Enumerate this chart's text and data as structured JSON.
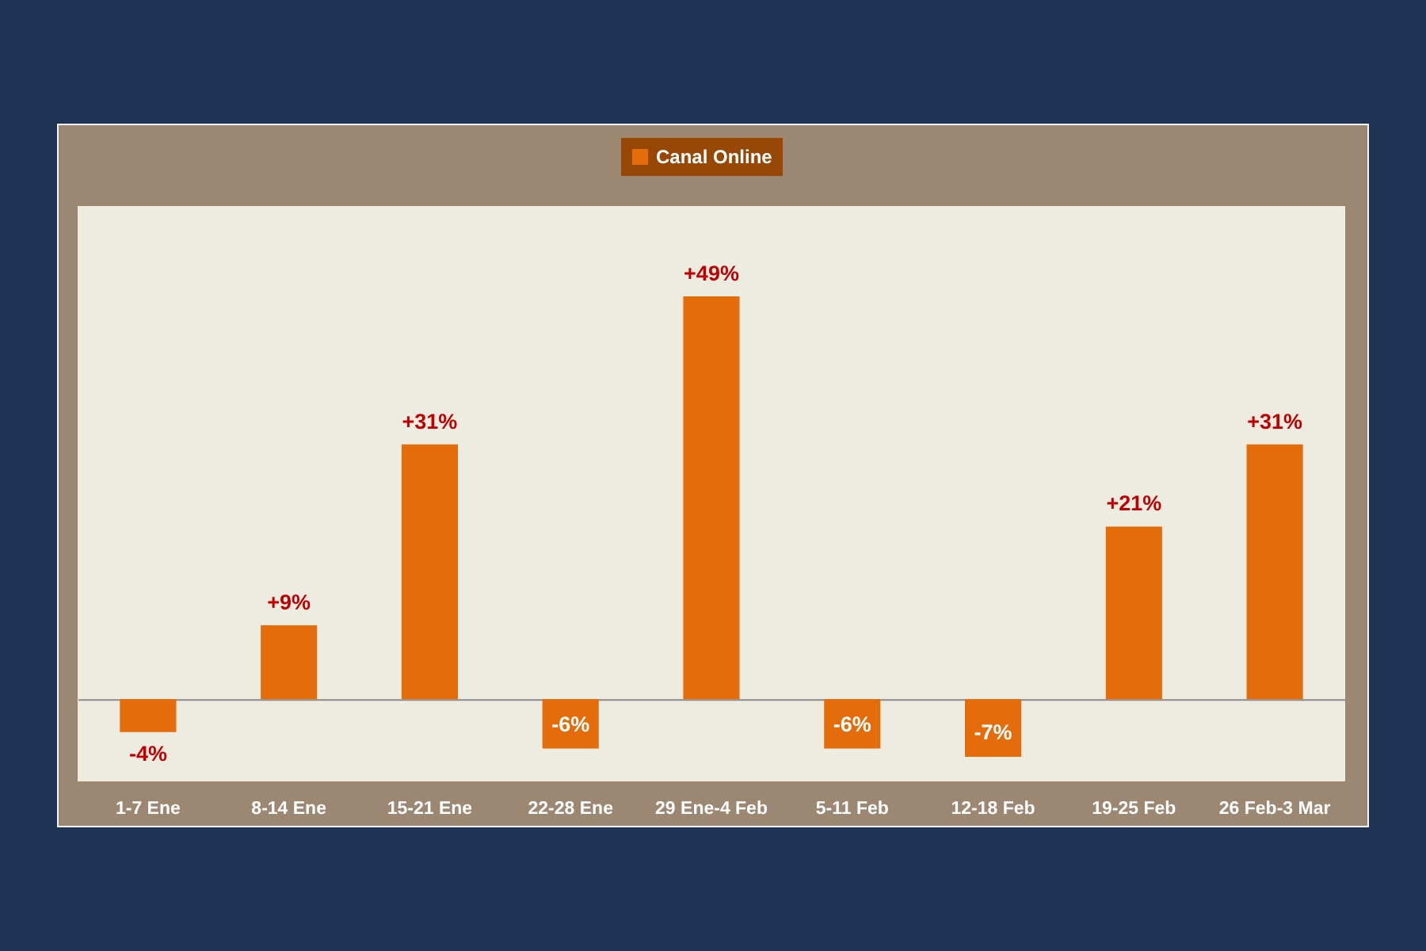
{
  "chart_data": {
    "type": "bar",
    "categories": [
      "1-7 Ene",
      "8-14 Ene",
      "15-21 Ene",
      "22-28 Ene",
      "29 Ene-4 Feb",
      "5-11 Feb",
      "12-18 Feb",
      "19-25 Feb",
      "26 Feb-3 Mar"
    ],
    "series": [
      {
        "name": "Canal Online",
        "color": "#e46c0a",
        "values": [
          -4,
          9,
          31,
          -6,
          49,
          -6,
          -7,
          21,
          31
        ],
        "value_labels": [
          "-4%",
          "+9%",
          "+31%",
          "-6%",
          "+49%",
          "-6%",
          "-7%",
          "+21%",
          "+31%"
        ]
      }
    ],
    "ylim": [
      -10,
      60
    ],
    "tick_labels": "x",
    "legend": "top",
    "grid": false
  }
}
